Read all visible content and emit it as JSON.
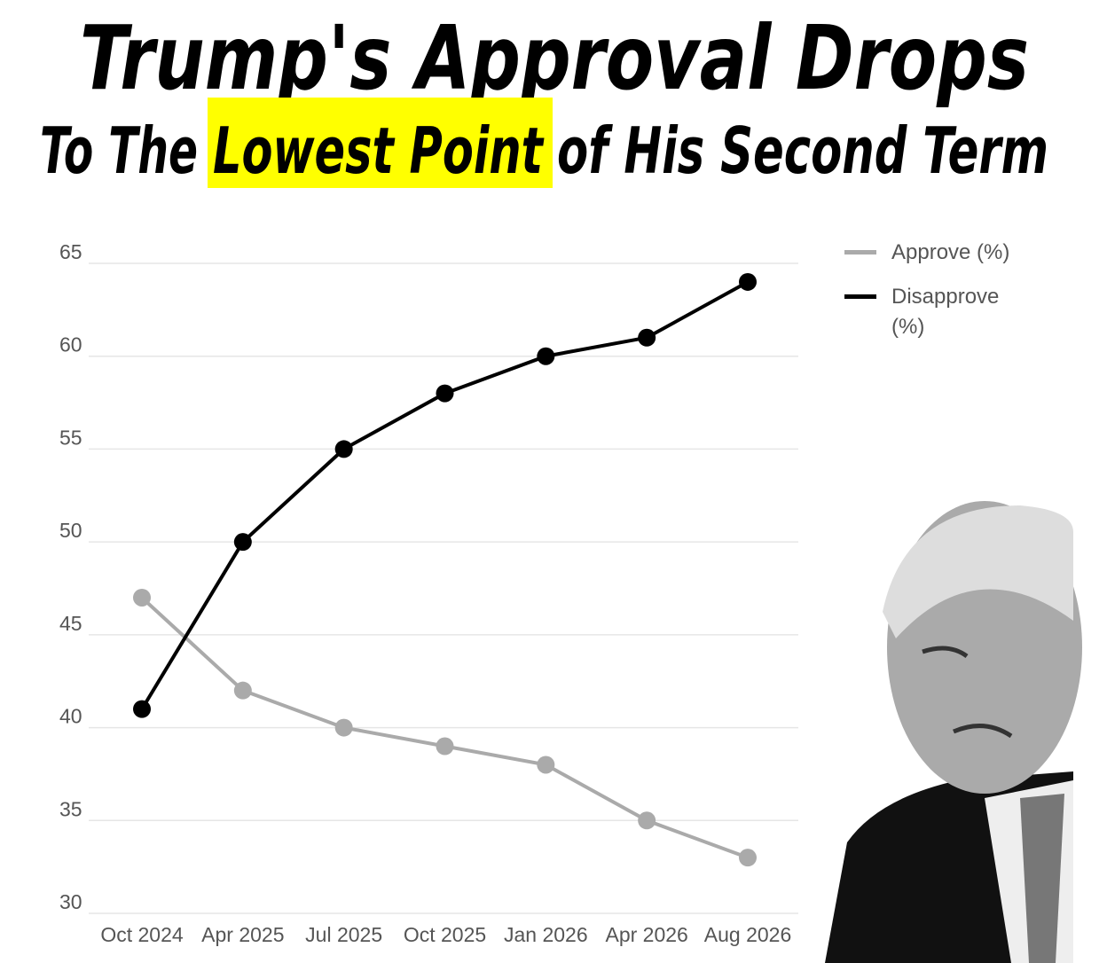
{
  "chart_data": {
    "type": "line",
    "title": "Trump's Approval Drops",
    "subtitle": {
      "before": "To The",
      "highlight": "Lowest Point",
      "after": "of His Second Term"
    },
    "highlight_color": "#ffff00",
    "categories": [
      "Oct 2024",
      "Apr 2025",
      "Jul 2025",
      "Oct 2025",
      "Jan 2026",
      "Apr 2026",
      "Aug 2026"
    ],
    "series": [
      {
        "name": "Approve (%)",
        "color": "#aaaaaa",
        "values": [
          47,
          42,
          40,
          39,
          38,
          35,
          33
        ]
      },
      {
        "name": "Disapprove (%)",
        "color": "#000000",
        "values": [
          41,
          50,
          55,
          58,
          60,
          61,
          64
        ]
      }
    ],
    "ylim": [
      30,
      65
    ],
    "yticks": [
      30,
      35,
      40,
      45,
      50,
      55,
      60,
      65
    ],
    "grid": true,
    "legend": "right"
  }
}
